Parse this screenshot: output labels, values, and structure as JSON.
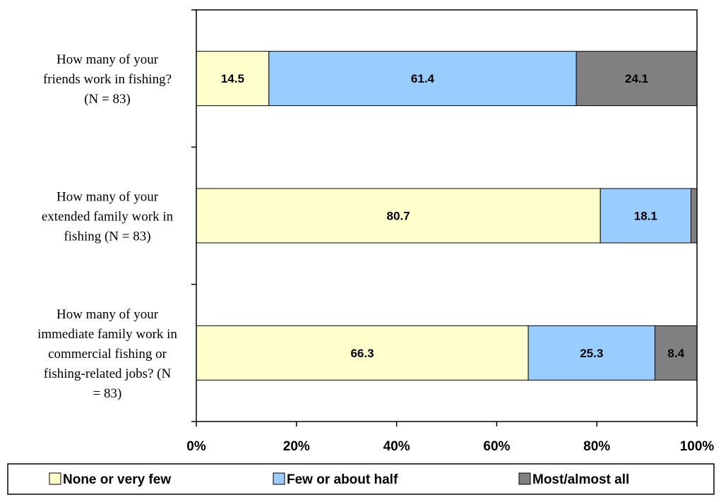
{
  "chart_data": {
    "type": "bar",
    "orientation": "horizontal",
    "stacked": true,
    "categories": [
      "How many of your friends work in fishing? (N = 83)",
      "How many of your extended family work in fishing (N = 83)",
      "How many of your immediate family work in commercial fishing or fishing-related jobs? (N = 83)"
    ],
    "category_lines": [
      [
        "How many of your",
        "friends work in fishing?",
        "(N = 83)"
      ],
      [
        "How many of your",
        "extended family work in",
        "fishing (N = 83)"
      ],
      [
        "How many of your",
        "immediate family work in",
        "commercial fishing or",
        "fishing-related jobs? (N",
        "= 83)"
      ]
    ],
    "series": [
      {
        "name": "None or very few",
        "color": "#FFFFCC",
        "values": [
          14.5,
          80.7,
          66.3
        ],
        "labels": [
          "14.5",
          "80.7",
          "66.3"
        ]
      },
      {
        "name": "Few or about half",
        "color": "#99CCFF",
        "values": [
          61.4,
          18.1,
          25.3
        ],
        "labels": [
          "61.4",
          "18.1",
          "25.3"
        ]
      },
      {
        "name": "Most/almost all",
        "color": "#808080",
        "values": [
          24.1,
          1.2,
          8.4
        ],
        "labels": [
          "24.1",
          "",
          "8.4"
        ]
      }
    ],
    "x_ticks": [
      "0%",
      "20%",
      "40%",
      "60%",
      "80%",
      "100%"
    ],
    "xlim": [
      0,
      100
    ],
    "grid": false,
    "legend_position": "bottom",
    "title": "",
    "xlabel": "",
    "ylabel": ""
  }
}
